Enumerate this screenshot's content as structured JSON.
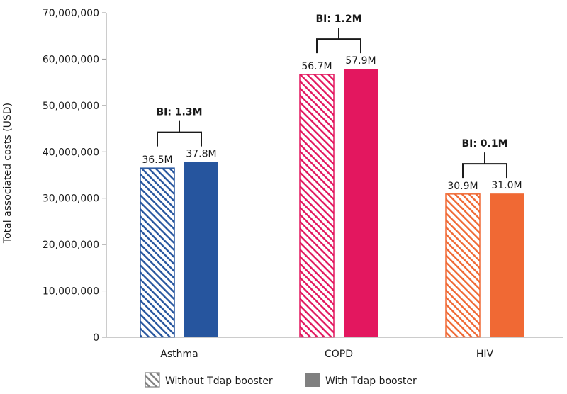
{
  "chart_data": {
    "type": "bar",
    "title": "",
    "xlabel": "",
    "ylabel": "Total associated costs (USD)",
    "ylim": [
      0,
      70000000
    ],
    "yticks": [
      0,
      10000000,
      20000000,
      30000000,
      40000000,
      50000000,
      60000000,
      70000000
    ],
    "ytick_labels": [
      "0",
      "10,000,000",
      "20,000,000",
      "30,000,000",
      "40,000,000",
      "50,000,000",
      "60,000,000",
      "70,000,000"
    ],
    "categories": [
      "Asthma",
      "COPD",
      "HIV"
    ],
    "category_colors": [
      "#26559e",
      "#e3175f",
      "#f06934"
    ],
    "series": [
      {
        "name": "Without Tdap booster",
        "pattern": "hatched",
        "values": [
          36500000,
          56700000,
          30900000
        ],
        "labels": [
          "36.5M",
          "56.7M",
          "30.9M"
        ]
      },
      {
        "name": "With Tdap booster",
        "pattern": "solid",
        "values": [
          37800000,
          57900000,
          31000000
        ],
        "labels": [
          "37.8M",
          "57.9M",
          "31.0M"
        ]
      }
    ],
    "annotations": [
      "BI: 1.3M",
      "BI: 1.2M",
      "BI: 0.1M"
    ],
    "legend": {
      "position": "bottom",
      "items": [
        {
          "label": "Without Tdap booster",
          "swatch": "hatched",
          "color": "#808080"
        },
        {
          "label": "With Tdap booster",
          "swatch": "solid",
          "color": "#808080"
        }
      ]
    }
  }
}
